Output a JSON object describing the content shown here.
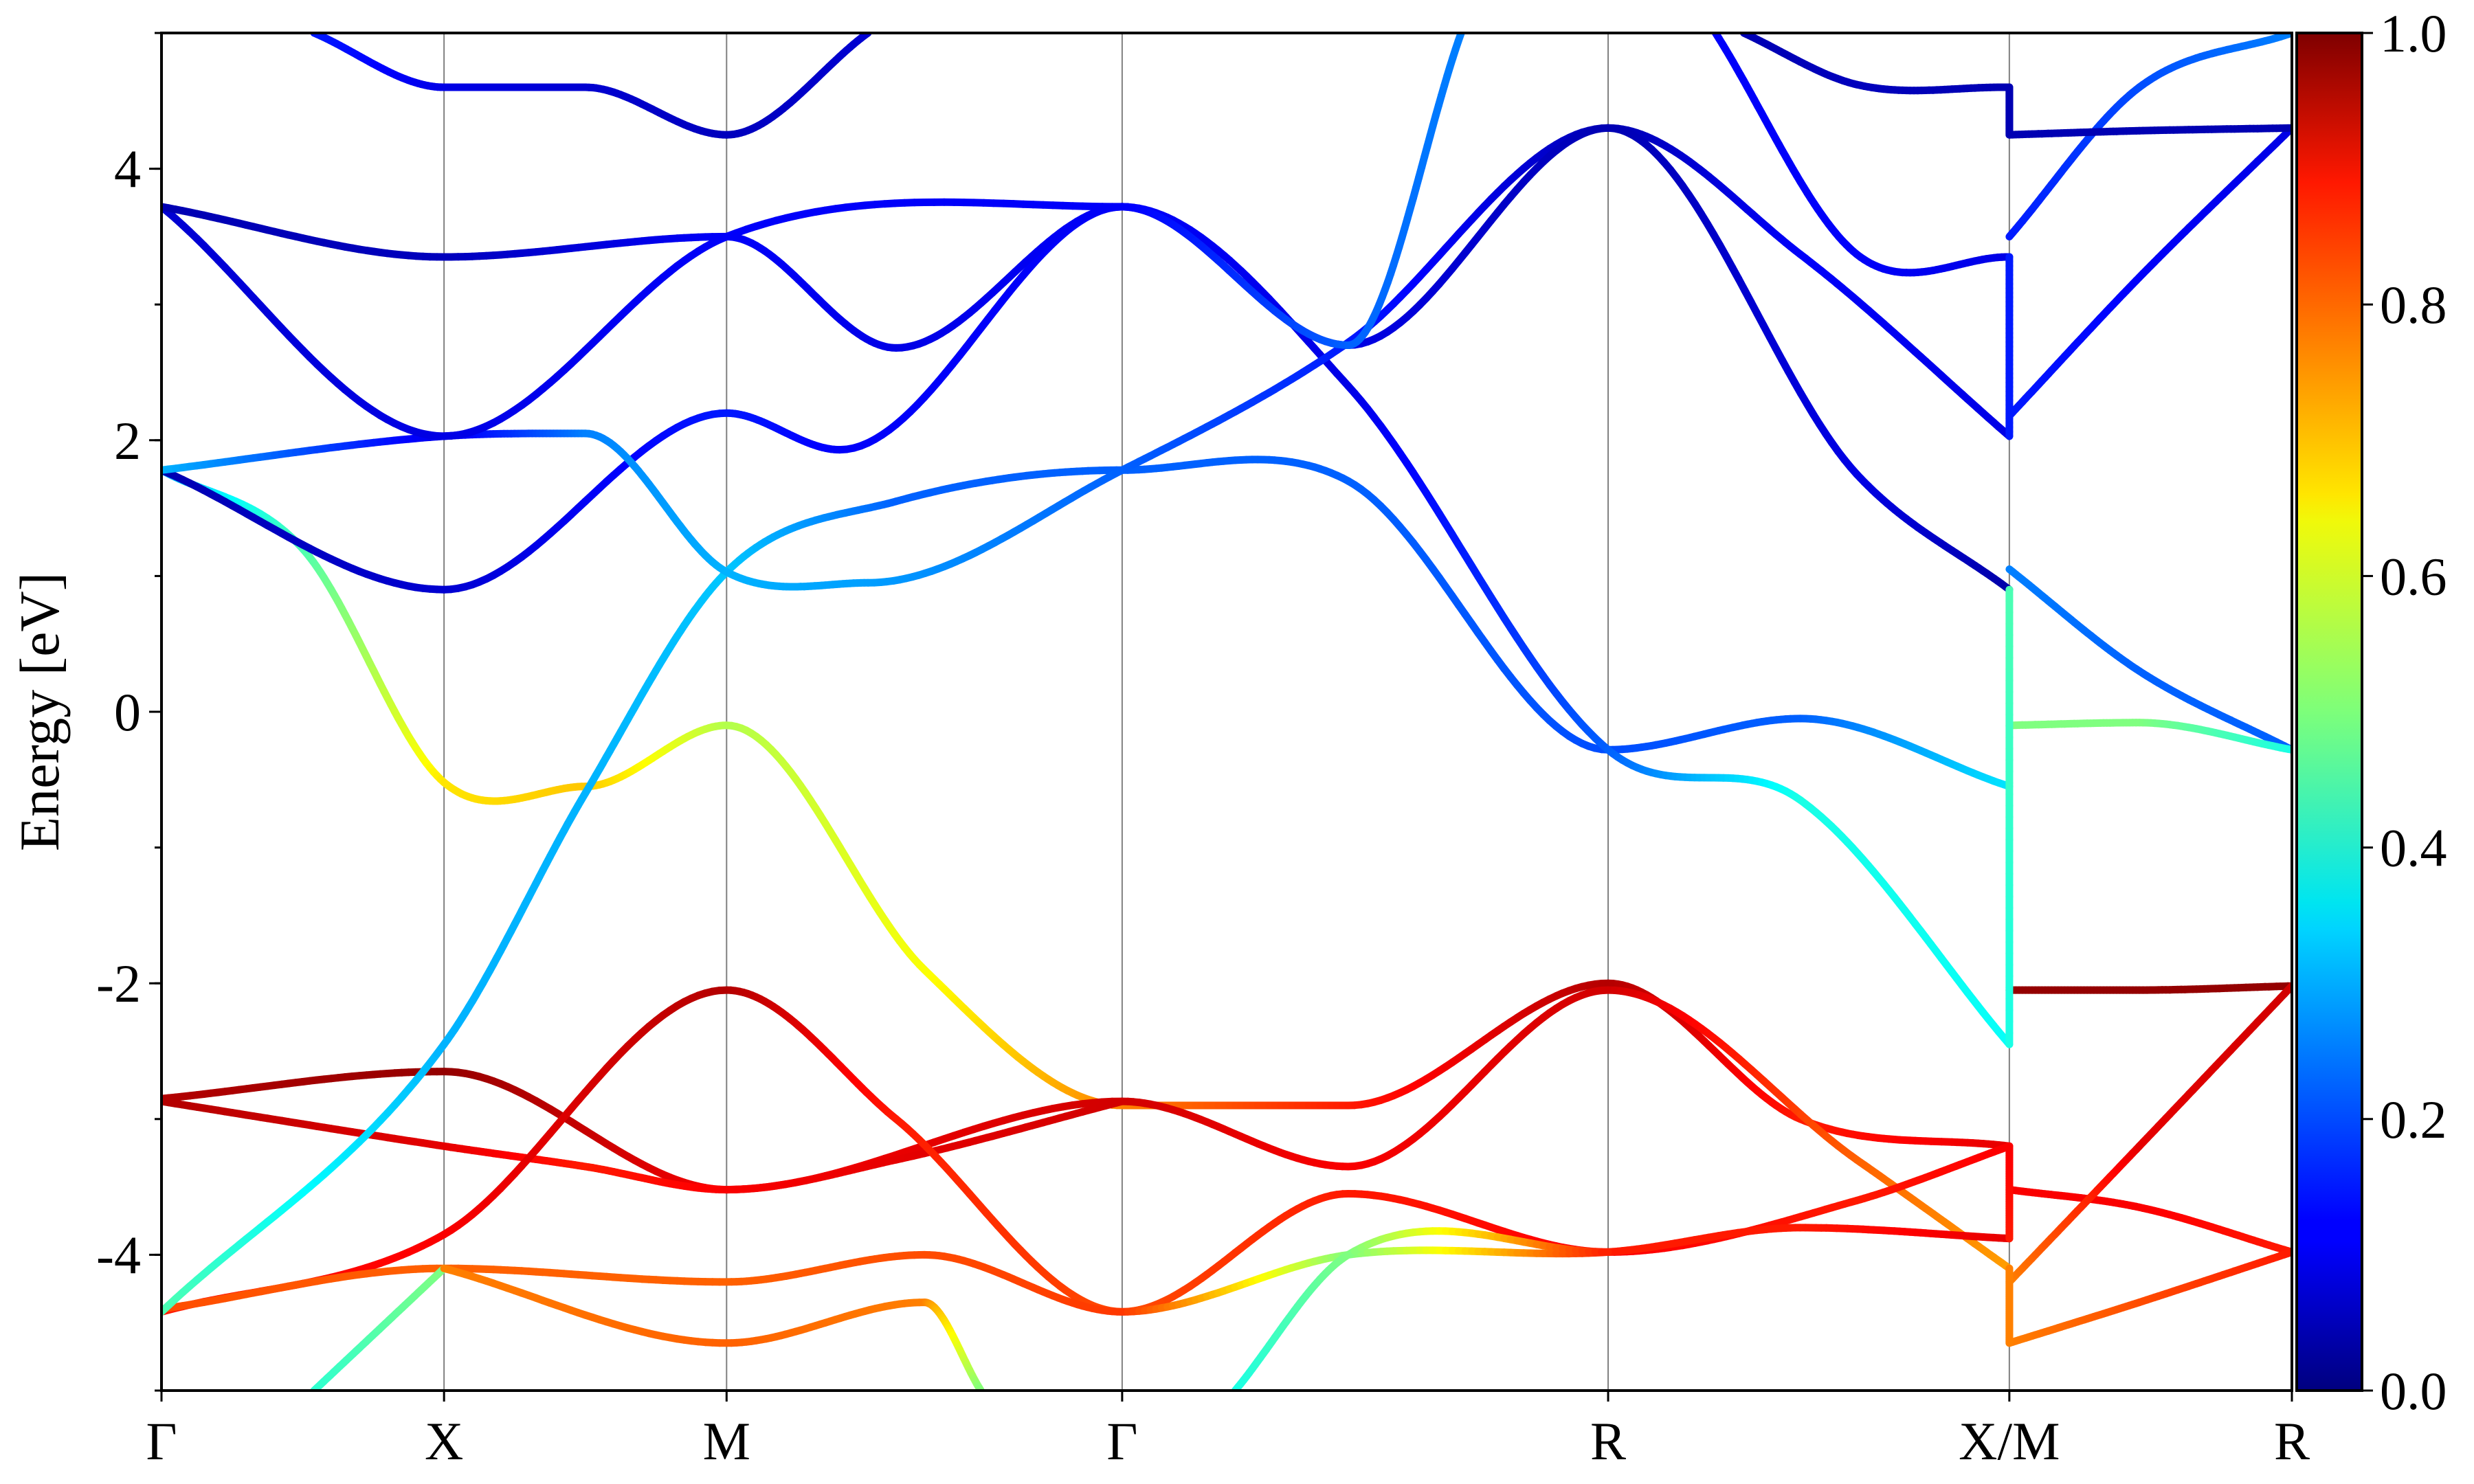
{
  "chart_data": {
    "type": "line",
    "subtype": "band-structure",
    "ylabel": "Energy [eV]",
    "ylim": [
      -5,
      5
    ],
    "y_ticks": [
      -4,
      -2,
      0,
      2,
      4
    ],
    "y_tick_labels": [
      "-4",
      "-2",
      "0",
      "2",
      "4"
    ],
    "y_minor_step": 1,
    "k_path": [
      {
        "label": "Γ",
        "k": 0.0
      },
      {
        "label": "X",
        "k": 0.5
      },
      {
        "label": "M",
        "k": 1.0
      },
      {
        "label": "Γ",
        "k": 1.7
      },
      {
        "label": "R",
        "k": 2.56
      },
      {
        "label": "X/M",
        "k": 3.27
      },
      {
        "label": "R",
        "k": 3.77
      }
    ],
    "xlim": [
      0,
      3.77
    ],
    "grid": "vertical lines at high-symmetry points",
    "colormap": "jet",
    "colorbar": {
      "min": 0.0,
      "max": 1.0,
      "ticks": [
        0.0,
        0.2,
        0.4,
        0.6,
        0.8,
        1.0
      ],
      "tick_labels": [
        "0.0",
        "0.2",
        "0.4",
        "0.6",
        "0.8",
        "1.0"
      ],
      "placement": "right"
    },
    "series": [
      {
        "x": [
          0.0,
          0.25,
          0.5,
          0.75,
          1.0,
          1.35,
          1.7,
          2.1,
          2.56,
          2.9,
          3.27
        ],
        "y": [
          1.78,
          1.2,
          -0.52,
          -0.55,
          -0.1,
          -1.9,
          -2.9,
          -2.9,
          -2.0,
          -3.0,
          -3.2
        ],
        "c": [
          0.3,
          0.45,
          0.65,
          0.68,
          0.55,
          0.62,
          0.75,
          0.85,
          0.95,
          0.85,
          0.9
        ]
      },
      {
        "x": [
          0.0,
          0.5,
          1.0,
          1.7,
          2.1,
          2.56,
          3.0,
          3.27
        ],
        "y": [
          -2.85,
          -2.65,
          -3.52,
          -2.87,
          -3.35,
          -2.05,
          -3.3,
          -4.1
        ],
        "c": [
          0.95,
          0.98,
          0.88,
          0.92,
          0.88,
          0.92,
          0.78,
          0.72
        ]
      },
      {
        "x": [
          0.0,
          0.5,
          0.75,
          1.0,
          1.3,
          1.7
        ],
        "y": [
          -2.87,
          -3.2,
          -3.35,
          -3.52,
          -3.3,
          -2.87
        ],
        "c": [
          0.95,
          0.9,
          0.85,
          0.88,
          0.9,
          0.92
        ]
      },
      {
        "x": [
          0.0,
          0.5,
          1.0,
          1.3,
          1.7,
          2.1,
          2.56,
          3.0,
          3.27
        ],
        "y": [
          -4.42,
          -3.85,
          -2.05,
          -3.0,
          -4.42,
          -3.55,
          -3.98,
          -3.6,
          -3.2
        ],
        "c": [
          0.85,
          0.88,
          0.95,
          0.85,
          0.8,
          0.85,
          0.88,
          0.85,
          0.88
        ]
      },
      {
        "x": [
          0.0,
          0.5,
          1.0,
          1.35,
          1.7,
          2.1,
          2.56,
          2.9,
          3.27
        ],
        "y": [
          -4.4,
          -4.1,
          -4.2,
          -4.0,
          -4.42,
          -4.0,
          -3.98,
          -3.8,
          -3.88
        ],
        "c": [
          0.8,
          0.78,
          0.78,
          0.8,
          0.82,
          0.5,
          0.85,
          0.85,
          0.9
        ]
      },
      {
        "x": [
          0.27,
          0.5
        ],
        "y": [
          -5.0,
          -4.1
        ],
        "c": [
          0.42,
          0.5
        ]
      },
      {
        "x": [
          0.5,
          1.0,
          1.35,
          1.45
        ],
        "y": [
          -4.1,
          -4.65,
          -4.35,
          -5.0
        ],
        "c": [
          0.75,
          0.78,
          0.75,
          0.5
        ]
      },
      {
        "x": [
          1.9,
          2.1,
          2.56
        ],
        "y": [
          -5.0,
          -4.0,
          -3.98
        ],
        "c": [
          0.4,
          0.5,
          0.85
        ]
      },
      {
        "x": [
          0.0,
          0.5,
          0.75,
          1.0,
          1.3,
          1.7,
          2.1,
          2.56,
          2.9,
          3.27
        ],
        "y": [
          -4.42,
          -2.45,
          -0.6,
          1.03,
          1.55,
          1.78,
          1.7,
          -0.28,
          -0.05,
          -0.55
        ],
        "c": [
          0.45,
          0.3,
          0.3,
          0.32,
          0.22,
          0.22,
          0.22,
          0.2,
          0.22,
          0.35
        ]
      },
      {
        "x": [
          0.0,
          0.5,
          1.0,
          1.2,
          1.7,
          2.1,
          2.56,
          2.9,
          3.27
        ],
        "y": [
          1.78,
          0.9,
          2.2,
          1.93,
          3.72,
          2.4,
          -0.28,
          -0.65,
          -2.45
        ],
        "c": [
          0.05,
          0.08,
          0.15,
          0.12,
          0.12,
          0.1,
          0.22,
          0.4,
          0.38
        ]
      },
      {
        "x": [
          0.0,
          0.5,
          0.75,
          1.0,
          1.25,
          1.7,
          2.1,
          2.56,
          2.9,
          3.27
        ],
        "y": [
          1.78,
          2.03,
          2.05,
          1.03,
          0.95,
          1.78,
          2.72,
          4.3,
          3.37,
          2.03
        ],
        "c": [
          0.3,
          0.1,
          0.25,
          0.3,
          0.28,
          0.22,
          0.15,
          0.05,
          0.12,
          0.1
        ]
      },
      {
        "x": [
          0.0,
          0.5,
          1.0,
          1.7,
          2.1,
          2.56,
          3.0,
          3.27
        ],
        "y": [
          3.72,
          2.03,
          3.5,
          3.72,
          2.7,
          4.3,
          1.75,
          0.9
        ],
        "c": [
          0.08,
          0.1,
          0.12,
          0.12,
          0.1,
          0.05,
          0.1,
          0.04
        ]
      },
      {
        "x": [
          0.0,
          0.5,
          1.0,
          1.3,
          1.7,
          2.1,
          2.3
        ],
        "y": [
          3.72,
          3.35,
          3.5,
          2.68,
          3.72,
          2.7,
          5.0
        ],
        "c": [
          0.05,
          0.06,
          0.12,
          0.1,
          0.12,
          0.22,
          0.25
        ]
      },
      {
        "x": [
          0.27,
          0.5,
          0.75,
          1.0,
          1.25
        ],
        "y": [
          5.0,
          4.6,
          4.6,
          4.25,
          5.0
        ],
        "c": [
          0.15,
          0.1,
          0.08,
          0.06,
          0.08
        ]
      },
      {
        "x": [
          2.75,
          3.0,
          3.27
        ],
        "y": [
          5.0,
          3.37,
          3.35
        ],
        "c": [
          0.12,
          0.12,
          0.1
        ]
      },
      {
        "x": [
          2.8,
          3.0,
          3.27
        ],
        "y": [
          5.0,
          4.62,
          4.6
        ],
        "c": [
          0.05,
          0.06,
          0.05
        ]
      },
      {
        "x": [
          3.27,
          3.5,
          3.77
        ],
        "y": [
          1.05,
          0.3,
          -0.28
        ],
        "c": [
          0.25,
          0.22,
          0.22
        ]
      },
      {
        "x": [
          3.27,
          3.5,
          3.77
        ],
        "y": [
          -0.1,
          -0.08,
          -0.28
        ],
        "c": [
          0.5,
          0.5,
          0.4
        ]
      },
      {
        "x": [
          3.27,
          3.5,
          3.77
        ],
        "y": [
          -2.05,
          -2.05,
          -2.02
        ],
        "c": [
          0.98,
          0.98,
          0.98
        ]
      },
      {
        "x": [
          3.27,
          3.5,
          3.77
        ],
        "y": [
          -3.52,
          -3.65,
          -3.98
        ],
        "c": [
          0.88,
          0.88,
          0.85
        ]
      },
      {
        "x": [
          3.27,
          3.5,
          3.77
        ],
        "y": [
          -4.2,
          -3.2,
          -2.02
        ],
        "c": [
          0.75,
          0.9,
          0.92
        ]
      },
      {
        "x": [
          3.27,
          3.5,
          3.77
        ],
        "y": [
          -4.65,
          -4.35,
          -3.98
        ],
        "c": [
          0.75,
          0.8,
          0.85
        ]
      },
      {
        "x": [
          3.27,
          3.5,
          3.77
        ],
        "y": [
          2.18,
          3.2,
          4.3
        ],
        "c": [
          0.15,
          0.12,
          0.1
        ]
      },
      {
        "x": [
          3.27,
          3.5,
          3.77
        ],
        "y": [
          3.5,
          4.6,
          5.0
        ],
        "c": [
          0.15,
          0.2,
          0.25
        ]
      },
      {
        "x": [
          3.27,
          3.5,
          3.77
        ],
        "y": [
          4.25,
          4.28,
          4.3
        ],
        "c": [
          0.05,
          0.05,
          0.05
        ]
      },
      {
        "x": [
          3.27,
          3.27
        ],
        "y": [
          -2.45,
          0.9
        ],
        "c": [
          0.4,
          0.45
        ]
      },
      {
        "x": [
          3.27,
          3.27
        ],
        "y": [
          2.03,
          3.35
        ],
        "c": [
          0.15,
          0.15
        ]
      },
      {
        "x": [
          3.27,
          3.27
        ],
        "y": [
          4.25,
          4.6
        ],
        "c": [
          0.05,
          0.05
        ]
      },
      {
        "x": [
          3.27,
          3.27
        ],
        "y": [
          -3.88,
          -3.2
        ],
        "c": [
          0.85,
          0.88
        ]
      },
      {
        "x": [
          3.27,
          3.27
        ],
        "y": [
          -4.65,
          -4.1
        ],
        "c": [
          0.75,
          0.75
        ]
      }
    ]
  }
}
